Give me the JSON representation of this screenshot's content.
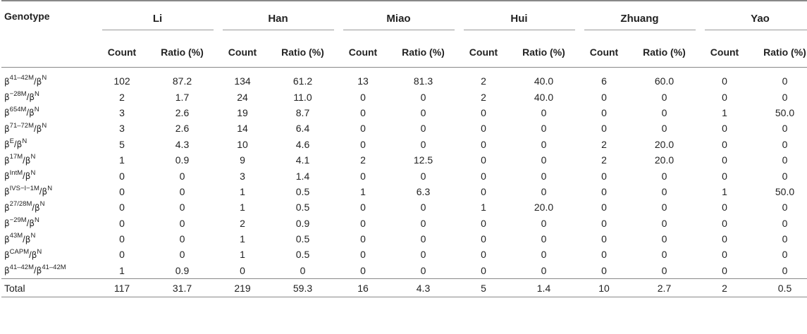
{
  "table": {
    "genotype_header": "Genotype",
    "groups": [
      "Li",
      "Han",
      "Miao",
      "Hui",
      "Zhuang",
      "Yao"
    ],
    "sub_headers": {
      "count": "Count",
      "ratio": "Ratio (%)"
    },
    "rows": [
      {
        "g1": "41–42M",
        "g2": "N",
        "vals": [
          "102",
          "87.2",
          "134",
          "61.2",
          "13",
          "81.3",
          "2",
          "40.0",
          "6",
          "60.0",
          "0",
          "0"
        ]
      },
      {
        "g1": "−28M",
        "g2": "N",
        "vals": [
          "2",
          "1.7",
          "24",
          "11.0",
          "0",
          "0",
          "2",
          "40.0",
          "0",
          "0",
          "0",
          "0"
        ]
      },
      {
        "g1": "654M",
        "g2": "N",
        "vals": [
          "3",
          "2.6",
          "19",
          "8.7",
          "0",
          "0",
          "0",
          "0",
          "0",
          "0",
          "1",
          "50.0"
        ]
      },
      {
        "g1": "71–72M",
        "g2": "N",
        "vals": [
          "3",
          "2.6",
          "14",
          "6.4",
          "0",
          "0",
          "0",
          "0",
          "0",
          "0",
          "0",
          "0"
        ]
      },
      {
        "g1": "E",
        "g2": "N",
        "vals": [
          "5",
          "4.3",
          "10",
          "4.6",
          "0",
          "0",
          "0",
          "0",
          "2",
          "20.0",
          "0",
          "0"
        ]
      },
      {
        "g1": "17M",
        "g2": "N",
        "vals": [
          "1",
          "0.9",
          "9",
          "4.1",
          "2",
          "12.5",
          "0",
          "0",
          "2",
          "20.0",
          "0",
          "0"
        ]
      },
      {
        "g1": "IntM",
        "g2": "N",
        "vals": [
          "0",
          "0",
          "3",
          "1.4",
          "0",
          "0",
          "0",
          "0",
          "0",
          "0",
          "0",
          "0"
        ]
      },
      {
        "g1": "IVS−I−1M",
        "g2": "N",
        "vals": [
          "0",
          "0",
          "1",
          "0.5",
          "1",
          "6.3",
          "0",
          "0",
          "0",
          "0",
          "1",
          "50.0"
        ]
      },
      {
        "g1": "27/28M",
        "g2": "N",
        "vals": [
          "0",
          "0",
          "1",
          "0.5",
          "0",
          "0",
          "1",
          "20.0",
          "0",
          "0",
          "0",
          "0"
        ]
      },
      {
        "g1": "−29M",
        "g2": "N",
        "vals": [
          "0",
          "0",
          "2",
          "0.9",
          "0",
          "0",
          "0",
          "0",
          "0",
          "0",
          "0",
          "0"
        ]
      },
      {
        "g1": "43M",
        "g2": "N",
        "vals": [
          "0",
          "0",
          "1",
          "0.5",
          "0",
          "0",
          "0",
          "0",
          "0",
          "0",
          "0",
          "0"
        ]
      },
      {
        "g1": "CAPM",
        "g2": "N",
        "vals": [
          "0",
          "0",
          "1",
          "0.5",
          "0",
          "0",
          "0",
          "0",
          "0",
          "0",
          "0",
          "0"
        ]
      },
      {
        "g1": "41–42M",
        "g2": "41–42M",
        "vals": [
          "1",
          "0.9",
          "0",
          "0",
          "0",
          "0",
          "0",
          "0",
          "0",
          "0",
          "0",
          "0"
        ]
      }
    ],
    "total": {
      "label": "Total",
      "vals": [
        "117",
        "31.7",
        "219",
        "59.3",
        "16",
        "4.3",
        "5",
        "1.4",
        "10",
        "2.7",
        "2",
        "0.5"
      ]
    }
  }
}
